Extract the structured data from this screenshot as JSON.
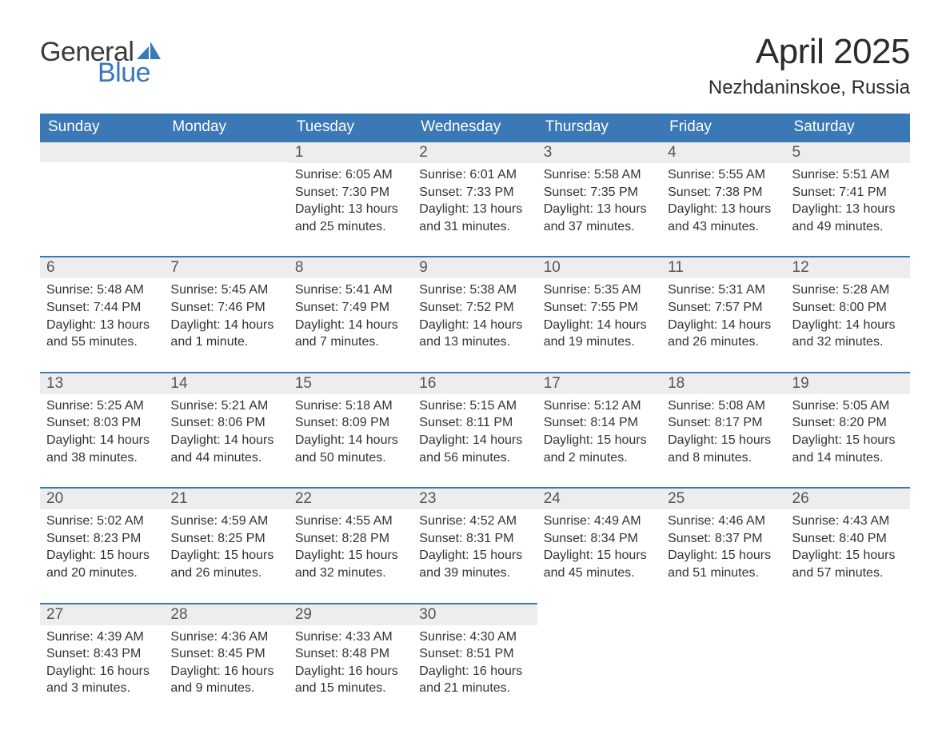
{
  "brand": {
    "word1": "General",
    "word2": "Blue",
    "sail_color": "#3a78b6"
  },
  "title": "April 2025",
  "location": "Nezhdaninskoe, Russia",
  "colors": {
    "header_bg": "#3a78b6",
    "header_text": "#ffffff",
    "daynum_bg": "#ededed",
    "border": "#3a78b6",
    "text": "#333333"
  },
  "day_headers": [
    "Sunday",
    "Monday",
    "Tuesday",
    "Wednesday",
    "Thursday",
    "Friday",
    "Saturday"
  ],
  "weeks": [
    [
      {
        "num": "",
        "lines": []
      },
      {
        "num": "",
        "lines": []
      },
      {
        "num": "1",
        "lines": [
          "Sunrise: 6:05 AM",
          "Sunset: 7:30 PM",
          "Daylight: 13 hours and 25 minutes."
        ]
      },
      {
        "num": "2",
        "lines": [
          "Sunrise: 6:01 AM",
          "Sunset: 7:33 PM",
          "Daylight: 13 hours and 31 minutes."
        ]
      },
      {
        "num": "3",
        "lines": [
          "Sunrise: 5:58 AM",
          "Sunset: 7:35 PM",
          "Daylight: 13 hours and 37 minutes."
        ]
      },
      {
        "num": "4",
        "lines": [
          "Sunrise: 5:55 AM",
          "Sunset: 7:38 PM",
          "Daylight: 13 hours and 43 minutes."
        ]
      },
      {
        "num": "5",
        "lines": [
          "Sunrise: 5:51 AM",
          "Sunset: 7:41 PM",
          "Daylight: 13 hours and 49 minutes."
        ]
      }
    ],
    [
      {
        "num": "6",
        "lines": [
          "Sunrise: 5:48 AM",
          "Sunset: 7:44 PM",
          "Daylight: 13 hours and 55 minutes."
        ]
      },
      {
        "num": "7",
        "lines": [
          "Sunrise: 5:45 AM",
          "Sunset: 7:46 PM",
          "Daylight: 14 hours and 1 minute."
        ]
      },
      {
        "num": "8",
        "lines": [
          "Sunrise: 5:41 AM",
          "Sunset: 7:49 PM",
          "Daylight: 14 hours and 7 minutes."
        ]
      },
      {
        "num": "9",
        "lines": [
          "Sunrise: 5:38 AM",
          "Sunset: 7:52 PM",
          "Daylight: 14 hours and 13 minutes."
        ]
      },
      {
        "num": "10",
        "lines": [
          "Sunrise: 5:35 AM",
          "Sunset: 7:55 PM",
          "Daylight: 14 hours and 19 minutes."
        ]
      },
      {
        "num": "11",
        "lines": [
          "Sunrise: 5:31 AM",
          "Sunset: 7:57 PM",
          "Daylight: 14 hours and 26 minutes."
        ]
      },
      {
        "num": "12",
        "lines": [
          "Sunrise: 5:28 AM",
          "Sunset: 8:00 PM",
          "Daylight: 14 hours and 32 minutes."
        ]
      }
    ],
    [
      {
        "num": "13",
        "lines": [
          "Sunrise: 5:25 AM",
          "Sunset: 8:03 PM",
          "Daylight: 14 hours and 38 minutes."
        ]
      },
      {
        "num": "14",
        "lines": [
          "Sunrise: 5:21 AM",
          "Sunset: 8:06 PM",
          "Daylight: 14 hours and 44 minutes."
        ]
      },
      {
        "num": "15",
        "lines": [
          "Sunrise: 5:18 AM",
          "Sunset: 8:09 PM",
          "Daylight: 14 hours and 50 minutes."
        ]
      },
      {
        "num": "16",
        "lines": [
          "Sunrise: 5:15 AM",
          "Sunset: 8:11 PM",
          "Daylight: 14 hours and 56 minutes."
        ]
      },
      {
        "num": "17",
        "lines": [
          "Sunrise: 5:12 AM",
          "Sunset: 8:14 PM",
          "Daylight: 15 hours and 2 minutes."
        ]
      },
      {
        "num": "18",
        "lines": [
          "Sunrise: 5:08 AM",
          "Sunset: 8:17 PM",
          "Daylight: 15 hours and 8 minutes."
        ]
      },
      {
        "num": "19",
        "lines": [
          "Sunrise: 5:05 AM",
          "Sunset: 8:20 PM",
          "Daylight: 15 hours and 14 minutes."
        ]
      }
    ],
    [
      {
        "num": "20",
        "lines": [
          "Sunrise: 5:02 AM",
          "Sunset: 8:23 PM",
          "Daylight: 15 hours and 20 minutes."
        ]
      },
      {
        "num": "21",
        "lines": [
          "Sunrise: 4:59 AM",
          "Sunset: 8:25 PM",
          "Daylight: 15 hours and 26 minutes."
        ]
      },
      {
        "num": "22",
        "lines": [
          "Sunrise: 4:55 AM",
          "Sunset: 8:28 PM",
          "Daylight: 15 hours and 32 minutes."
        ]
      },
      {
        "num": "23",
        "lines": [
          "Sunrise: 4:52 AM",
          "Sunset: 8:31 PM",
          "Daylight: 15 hours and 39 minutes."
        ]
      },
      {
        "num": "24",
        "lines": [
          "Sunrise: 4:49 AM",
          "Sunset: 8:34 PM",
          "Daylight: 15 hours and 45 minutes."
        ]
      },
      {
        "num": "25",
        "lines": [
          "Sunrise: 4:46 AM",
          "Sunset: 8:37 PM",
          "Daylight: 15 hours and 51 minutes."
        ]
      },
      {
        "num": "26",
        "lines": [
          "Sunrise: 4:43 AM",
          "Sunset: 8:40 PM",
          "Daylight: 15 hours and 57 minutes."
        ]
      }
    ],
    [
      {
        "num": "27",
        "lines": [
          "Sunrise: 4:39 AM",
          "Sunset: 8:43 PM",
          "Daylight: 16 hours and 3 minutes."
        ]
      },
      {
        "num": "28",
        "lines": [
          "Sunrise: 4:36 AM",
          "Sunset: 8:45 PM",
          "Daylight: 16 hours and 9 minutes."
        ]
      },
      {
        "num": "29",
        "lines": [
          "Sunrise: 4:33 AM",
          "Sunset: 8:48 PM",
          "Daylight: 16 hours and 15 minutes."
        ]
      },
      {
        "num": "30",
        "lines": [
          "Sunrise: 4:30 AM",
          "Sunset: 8:51 PM",
          "Daylight: 16 hours and 21 minutes."
        ]
      },
      {
        "num": "",
        "lines": []
      },
      {
        "num": "",
        "lines": []
      },
      {
        "num": "",
        "lines": []
      }
    ]
  ]
}
